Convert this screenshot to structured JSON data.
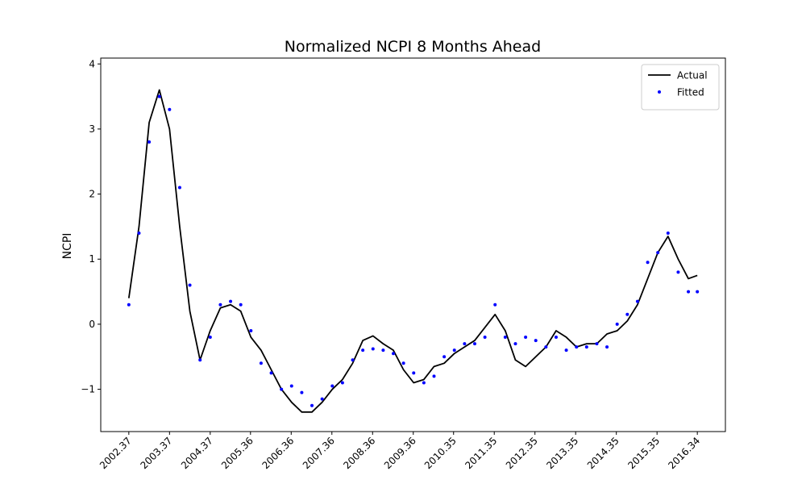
{
  "chart_data": {
    "type": "line",
    "title": "Normalized NCPI 8 Months Ahead",
    "y_label": "NCPI",
    "x": [
      2002.37,
      2002.62,
      2002.87,
      2003.12,
      2003.37,
      2003.62,
      2003.87,
      2004.12,
      2004.37,
      2004.62,
      2004.87,
      2005.12,
      2005.37,
      2005.62,
      2005.87,
      2006.12,
      2006.37,
      2006.62,
      2006.87,
      2007.12,
      2007.37,
      2007.62,
      2007.87,
      2008.12,
      2008.37,
      2008.62,
      2008.87,
      2009.12,
      2009.37,
      2009.62,
      2009.87,
      2010.12,
      2010.37,
      2010.62,
      2010.87,
      2011.12,
      2011.37,
      2011.62,
      2011.87,
      2012.12,
      2012.37,
      2012.62,
      2012.87,
      2013.12,
      2013.37,
      2013.62,
      2013.87,
      2014.12,
      2014.37,
      2014.62,
      2014.87,
      2015.12,
      2015.37,
      2015.62,
      2015.87,
      2016.12,
      2016.34
    ],
    "series": [
      {
        "name": "Actual",
        "type": "line",
        "color": "#000000",
        "values": [
          0.4,
          1.5,
          3.1,
          3.6,
          3.0,
          1.5,
          0.2,
          -0.55,
          -0.1,
          0.25,
          0.3,
          0.2,
          -0.2,
          -0.4,
          -0.7,
          -1.0,
          -1.2,
          -1.35,
          -1.35,
          -1.2,
          -1.0,
          -0.85,
          -0.6,
          -0.25,
          -0.18,
          -0.3,
          -0.4,
          -0.7,
          -0.9,
          -0.85,
          -0.65,
          -0.6,
          -0.45,
          -0.35,
          -0.25,
          -0.05,
          0.15,
          -0.1,
          -0.55,
          -0.65,
          -0.5,
          -0.35,
          -0.1,
          -0.2,
          -0.35,
          -0.3,
          -0.3,
          -0.15,
          -0.1,
          0.05,
          0.3,
          0.7,
          1.1,
          1.35,
          1.0,
          0.7,
          0.75
        ]
      },
      {
        "name": "Fitted",
        "type": "scatter",
        "color": "#0000ff",
        "values": [
          0.3,
          1.4,
          2.8,
          3.5,
          3.3,
          2.1,
          0.6,
          -0.55,
          -0.2,
          0.3,
          0.35,
          0.3,
          -0.1,
          -0.6,
          -0.75,
          -1.0,
          -0.95,
          -1.05,
          -1.25,
          -1.15,
          -0.95,
          -0.9,
          -0.55,
          -0.4,
          -0.38,
          -0.4,
          -0.45,
          -0.6,
          -0.75,
          -0.9,
          -0.8,
          -0.5,
          -0.4,
          -0.3,
          -0.3,
          -0.2,
          0.3,
          -0.2,
          -0.3,
          -0.2,
          -0.25,
          -0.35,
          -0.2,
          -0.4,
          -0.35,
          -0.35,
          -0.3,
          -0.35,
          0.0,
          0.15,
          0.35,
          0.95,
          1.1,
          1.4,
          0.8,
          0.5,
          0.5
        ]
      }
    ],
    "xlim": [
      2001.68,
      2017.03
    ],
    "ylim": [
      -1.65,
      4.09
    ],
    "xticks": [
      2002.37,
      2003.37,
      2004.37,
      2005.36,
      2006.36,
      2007.36,
      2008.36,
      2009.36,
      2010.35,
      2011.35,
      2012.35,
      2013.35,
      2014.35,
      2015.35,
      2016.34
    ],
    "yticks": [
      {
        "value": -1,
        "label": "−1"
      },
      0,
      1,
      2,
      3,
      4
    ],
    "legend": "upper right"
  }
}
